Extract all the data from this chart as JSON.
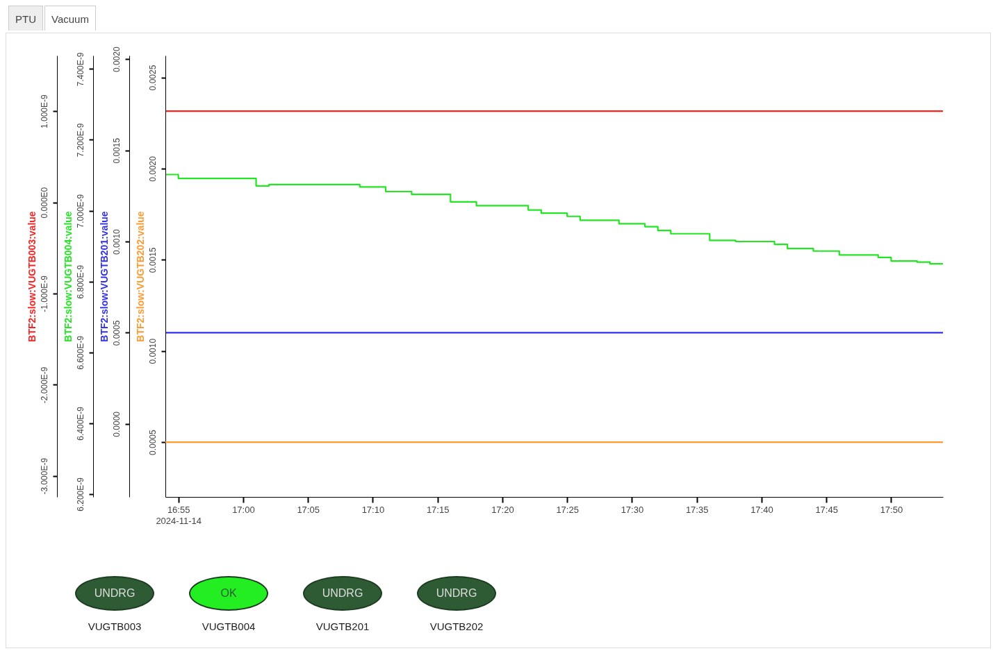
{
  "chart_data": [
    {
      "type": "line",
      "annotations": [
        "PTU",
        "Vacuum"
      ],
      "ylabel": "BTF2:slow:VUGTB003:value",
      "y2label": "BTF2:slow:VUGTB004:value",
      "y3label": "BTF2:slow:VUGTB201:value",
      "xlim": [
        "2024-11-14T16:54",
        "2024-11-14T17:54"
      ],
      "xticks": [
        {
          "value": "2024-11-14T16:55",
          "label": "16:55\n2024-11-14"
        },
        {
          "value": "2024-11-14T17:00",
          "label": "17:00"
        },
        {
          "value": "2024-11-14T17:05",
          "label": "17:05"
        },
        {
          "value": "2024-11-14T17:10",
          "label": "17:10"
        },
        {
          "value": "2024-11-14T17:15",
          "label": "17:15"
        },
        {
          "value": "2024-11-14T17:20",
          "label": "17:20"
        },
        {
          "value": "2024-11-14T17:25",
          "label": "17:25"
        },
        {
          "value": "2024-11-14T17:30",
          "label": "17:30"
        },
        {
          "value": "2024-11-14T17:35",
          "label": "17:35"
        },
        {
          "value": "2024-11-14T17:40",
          "label": "17:40"
        },
        {
          "value": "2024-11-14T17:45",
          "label": "17:45"
        },
        {
          "value": "2024-11-14T17:50",
          "label": "17:50"
        }
      ],
      "ylim": [
        -3.23e-09,
        1.61e-09
      ],
      "yticks": [
        {
          "value": 1e-09,
          "label": "1.000E-9"
        },
        {
          "value": 0,
          "label": "0.000E0"
        },
        {
          "value": -1e-09,
          "label": "-1.000E-9"
        },
        {
          "value": -2e-09,
          "label": "-2.000E-9"
        },
        {
          "value": -3e-09,
          "label": "-3.000E-9"
        }
      ],
      "y2lim": [
        6.192e-09,
        7.438e-09
      ],
      "y2ticks": [
        {
          "value": 7.4e-09,
          "label": "7.400E-9"
        },
        {
          "value": 7.2e-09,
          "label": "7.200E-9"
        },
        {
          "value": 7e-09,
          "label": "7.000E-9"
        },
        {
          "value": 6.8e-09,
          "label": "6.800E-9"
        },
        {
          "value": 6.6e-09,
          "label": "6.600E-9"
        },
        {
          "value": 6.4e-09,
          "label": "6.400E-9"
        },
        {
          "value": 6.2e-09,
          "label": "6.200E-9"
        }
      ],
      "y3lim": [
        -0.0004,
        0.00202
      ],
      "y3ticks": [
        {
          "value": 0.002,
          "label": "0.0020"
        },
        {
          "value": 0.0015,
          "label": "0.0015"
        },
        {
          "value": 0.001,
          "label": "0.0010"
        },
        {
          "value": 0.0005,
          "label": "0.0005"
        },
        {
          "value": 0,
          "label": "0.0000"
        }
      ],
      "grid": false,
      "series": [
        {
          "color": "#ff2020",
          "axis": "y",
          "x": [
            "2024-11-14T16:54",
            "2024-11-14T17:54"
          ],
          "values": [
            1e-09,
            1e-09
          ]
        },
        {
          "color": "#22e622",
          "axis": "y2",
          "type": "step",
          "x": [
            "2024-11-14T16:54",
            "2024-11-14T16:55",
            "2024-11-14T17:01",
            "2024-11-14T17:02",
            "2024-11-14T17:09",
            "2024-11-14T17:11",
            "2024-11-14T17:13",
            "2024-11-14T17:16",
            "2024-11-14T17:18",
            "2024-11-14T17:22",
            "2024-11-14T17:23",
            "2024-11-14T17:25",
            "2024-11-14T17:26",
            "2024-11-14T17:29",
            "2024-11-14T17:31",
            "2024-11-14T17:32",
            "2024-11-14T17:33",
            "2024-11-14T17:36",
            "2024-11-14T17:38",
            "2024-11-14T17:41",
            "2024-11-14T17:42",
            "2024-11-14T17:44",
            "2024-11-14T17:46",
            "2024-11-14T17:49",
            "2024-11-14T17:50",
            "2024-11-14T17:52",
            "2024-11-14T17:53",
            "2024-11-14T17:54"
          ],
          "values": [
            7.102e-09,
            7.091e-09,
            7.07e-09,
            7.074e-09,
            7.067e-09,
            7.054e-09,
            7.046e-09,
            7.025e-09,
            7.014e-09,
            7.002e-09,
            6.993e-09,
            6.984e-09,
            6.973e-09,
            6.963e-09,
            6.955e-09,
            6.944e-09,
            6.935e-09,
            6.916e-09,
            6.913e-09,
            6.905e-09,
            6.893e-09,
            6.886e-09,
            6.875e-09,
            6.868e-09,
            6.858e-09,
            6.855e-09,
            6.85e-09,
            6.85e-09
          ]
        },
        {
          "color": "#3030ee",
          "axis": "y3",
          "x": [
            "2024-11-14T16:54",
            "2024-11-14T17:54"
          ],
          "values": [
            0.0005,
            0.0005
          ]
        }
      ]
    },
    {
      "type": "line",
      "ylabel": "BTF2:slow:VUGTB202:value",
      "tick_labels": "y",
      "xlim": [
        "2024-11-14T16:54",
        "2024-11-14T17:54"
      ],
      "ylim": [
        0.0002,
        0.00262
      ],
      "yticks": [
        {
          "value": 0.0025,
          "label": "0.0025"
        },
        {
          "value": 0.002,
          "label": "0.0020"
        },
        {
          "value": 0.0015,
          "label": "0.0015"
        },
        {
          "value": 0.001,
          "label": "0.0010"
        },
        {
          "value": 0.0005,
          "label": "0.0005"
        }
      ],
      "grid": false,
      "series": [
        {
          "color": "#ff9a30",
          "x": [
            "2024-11-14T16:54",
            "2024-11-14T17:54"
          ],
          "values": [
            0.0005,
            0.0005
          ]
        }
      ]
    },
    {
      "type": "other",
      "annotations": [
        "UNDRG",
        "VUGTB003",
        "OK",
        "VUGTB004",
        "UNDRG",
        "VUGTB201",
        "UNDRG",
        "VUGTB202"
      ],
      "colors": [
        "#2e5a34",
        "#22ee22",
        "#2e5a34",
        "#2e5a34"
      ]
    }
  ]
}
